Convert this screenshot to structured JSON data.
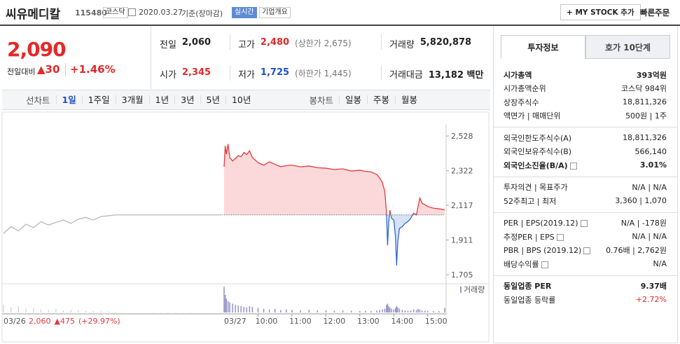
{
  "header": {
    "title": "씨유메디칼",
    "code": "115480",
    "market": "코스닥",
    "date": "2020.03.27",
    "basis": "기준(장마감)",
    "realtime": "실시간",
    "company_info": "기업개요",
    "my_stock": "+ MY STOCK 추가",
    "quick_order": "빠른주문"
  },
  "price": {
    "current": "2,090",
    "change_label": "전일대비",
    "change": "▲30",
    "change_rate": "+1.46%",
    "color": "#e52828"
  },
  "quote": [
    {
      "label": "전일",
      "value": "2,060",
      "color": "#222222"
    },
    {
      "label": "고가",
      "value": "2,480",
      "note": "(상한가 2,675)",
      "color": "#e52828"
    },
    {
      "label": "거래량",
      "value": "5,820,878",
      "color": "#222222"
    },
    {
      "label": "시가",
      "value": "2,345",
      "color": "#e52828"
    },
    {
      "label": "저가",
      "value": "1,725",
      "note": "(하한가 1,445)",
      "color": "#1e50c8"
    },
    {
      "label": "거래대금",
      "value": "13,182 백만",
      "color": "#222222"
    }
  ],
  "tabs": {
    "line_label": "선차트",
    "line": [
      "1일",
      "1주일",
      "3개월",
      "1년",
      "3년",
      "5년",
      "10년"
    ],
    "line_selected": 0,
    "candle_label": "봉차트",
    "candle": [
      "일봉",
      "주봉",
      "월봉"
    ]
  },
  "side": {
    "tabs": [
      "투자정보",
      "호가 10단계"
    ],
    "selected": 0,
    "groups": [
      [
        {
          "label": "시가총액",
          "value": "393억원",
          "bold": true
        },
        {
          "label": "시가총액순위",
          "value": "코스닥 984위"
        },
        {
          "label": "상장주식수",
          "value": "18,811,326"
        },
        {
          "label": "액면가 | 매매단위",
          "value": "500원 | 1주"
        }
      ],
      [
        {
          "label": "외국인한도주식수(A)",
          "value": "18,811,326"
        },
        {
          "label": "외국인보유주식수(B)",
          "value": "566,140"
        },
        {
          "label": "외국인소진율(B/A)",
          "value": "3.01%",
          "bold": true,
          "help": true
        }
      ],
      [
        {
          "label": "투자의견 | 목표주가",
          "value": "N/A | N/A"
        },
        {
          "label": "52주최고 | 최저",
          "value": "3,360 | 1,070"
        }
      ],
      [
        {
          "label": "PER | EPS(2019.12)",
          "value": "N/A | -178원",
          "help": true
        },
        {
          "label": "추정PER | EPS",
          "value": "N/A | N/A",
          "help": true
        },
        {
          "label": "PBR | BPS (2019.12)",
          "value": "0.76배 | 2,762원",
          "help": true
        },
        {
          "label": "배당수익률",
          "value": "N/A",
          "help": true
        }
      ],
      [
        {
          "label": "동일업종 PER",
          "value": "9.37배",
          "bold": true
        },
        {
          "label": "동일업종 등락률",
          "value": "+2.72%",
          "color": "#e52828"
        }
      ]
    ]
  },
  "chart_data": {
    "type": "line",
    "ylim": [
      1660,
      2570
    ],
    "yticks": [
      {
        "value": 2528,
        "label": "2,528"
      },
      {
        "value": 2322,
        "label": "2,322"
      },
      {
        "value": 2117,
        "label": "2,117"
      },
      {
        "value": 1911,
        "label": "1,911"
      },
      {
        "value": 1705,
        "label": "1,705"
      }
    ],
    "xlim": [
      "09:00",
      "15:30"
    ],
    "xticks": [
      "10:00",
      "11:00",
      "12:00",
      "13:00",
      "14:00",
      "15:00"
    ],
    "base_value": 2060,
    "up_color": "#e8383d",
    "down_color": "#2f6ad0",
    "up_fill": "#fbd9da",
    "down_fill": "#d6e2f6",
    "previous": {
      "date": "03/26",
      "color": "#b9b9b9",
      "caption": [
        "2,060",
        "▲475",
        "(+29.97%)"
      ],
      "values": [
        1950,
        1990,
        1965,
        2005,
        1985,
        2020,
        2000,
        2015,
        2030,
        2010,
        2035,
        2045,
        2030,
        2050,
        2055,
        2060,
        2060,
        2060,
        2060,
        2060,
        2060,
        2060,
        2060,
        2060,
        2060,
        2060,
        2060,
        2060,
        2060,
        2060
      ]
    },
    "today": {
      "date": "03/27",
      "x": [
        "09:00",
        "09:02",
        "09:04",
        "09:07",
        "09:10",
        "09:15",
        "09:20",
        "09:25",
        "09:30",
        "09:35",
        "09:40",
        "09:45",
        "09:50",
        "10:00",
        "10:10",
        "10:20",
        "10:30",
        "10:40",
        "10:50",
        "11:00",
        "11:15",
        "11:30",
        "11:45",
        "12:00",
        "12:15",
        "12:30",
        "12:45",
        "13:00",
        "13:10",
        "13:20",
        "13:30",
        "13:35",
        "13:40",
        "13:44",
        "13:47",
        "13:49",
        "13:51",
        "13:53",
        "13:56",
        "14:00",
        "14:03",
        "14:05",
        "14:07",
        "14:10",
        "14:15",
        "14:20",
        "14:25",
        "14:30",
        "14:35",
        "14:40",
        "14:43",
        "14:46",
        "14:50",
        "14:55",
        "15:00",
        "15:10",
        "15:20",
        "15:30"
      ],
      "values": [
        2345,
        2470,
        2420,
        2480,
        2400,
        2380,
        2395,
        2412,
        2405,
        2430,
        2418,
        2440,
        2400,
        2370,
        2355,
        2375,
        2360,
        2346,
        2352,
        2355,
        2345,
        2350,
        2340,
        2337,
        2329,
        2333,
        2320,
        2325,
        2318,
        2315,
        2300,
        2280,
        2250,
        2200,
        2080,
        1880,
        2010,
        2088,
        2040,
        2030,
        1930,
        1760,
        1900,
        1980,
        1990,
        2010,
        2020,
        2040,
        2070,
        2060,
        2110,
        2160,
        2130,
        2120,
        2110,
        2100,
        2096,
        2090
      ]
    },
    "volume": {
      "label": "거래량",
      "ylim": [
        0,
        100
      ],
      "color": "#9797c9",
      "previous_color": "#cfcfcf",
      "previous": [
        30,
        20,
        25,
        15,
        18,
        12,
        10,
        14,
        8,
        10,
        8,
        6,
        5,
        5,
        4,
        3,
        2,
        2,
        2,
        2,
        2,
        2,
        2,
        2,
        2,
        2,
        2,
        2,
        2,
        3
      ],
      "today": [
        100,
        70,
        55,
        45,
        40,
        35,
        30,
        28,
        25,
        22,
        20,
        25,
        22,
        18,
        15,
        12,
        14,
        10,
        12,
        10,
        9,
        11,
        8,
        8,
        7,
        8,
        7,
        6,
        7,
        6,
        8,
        10,
        12,
        15,
        30,
        35,
        25,
        20,
        15,
        12,
        18,
        25,
        20,
        15,
        10,
        8,
        7,
        8,
        12,
        10,
        14,
        12,
        8,
        7,
        6,
        5,
        5,
        18
      ]
    }
  }
}
